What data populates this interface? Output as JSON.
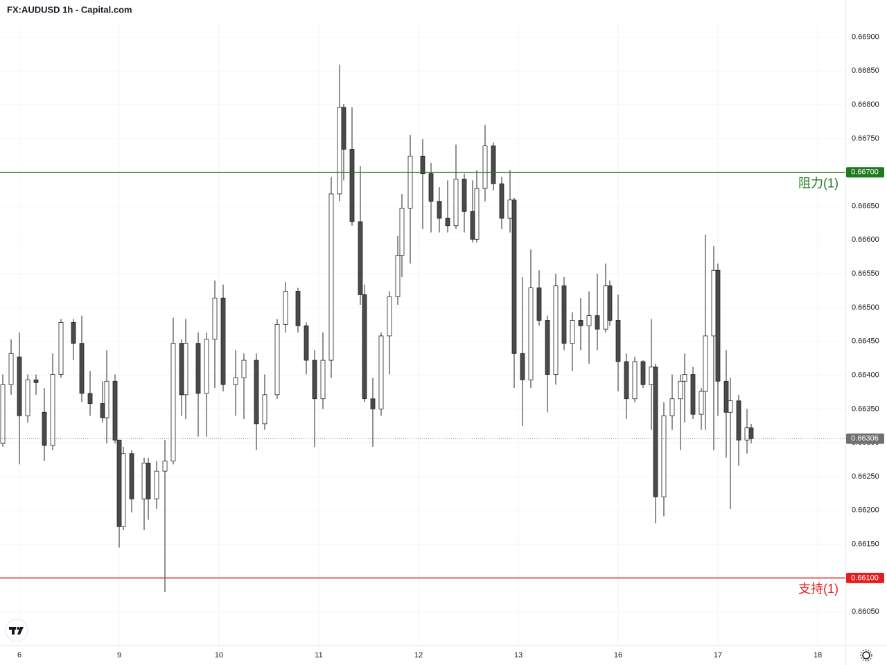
{
  "chart_data": {
    "type": "candlestick",
    "title": "FX:AUDUSD 1h - Capital.com",
    "up_color": "#ffffff",
    "down_color": "#4a4a4a",
    "wick_color": "#222222",
    "grid": true,
    "xlim": [
      -4.67,
      198.67
    ],
    "ylim": [
      0.66,
      0.66922
    ],
    "xticks": [
      {
        "value": 0,
        "label": "6"
      },
      {
        "value": 24,
        "label": "9"
      },
      {
        "value": 48,
        "label": "10"
      },
      {
        "value": 72,
        "label": "11"
      },
      {
        "value": 96,
        "label": "12"
      },
      {
        "value": 120,
        "label": "13"
      },
      {
        "value": 144,
        "label": "16"
      },
      {
        "value": 168,
        "label": "17"
      },
      {
        "value": 192,
        "label": "18"
      }
    ],
    "yticks": [
      {
        "value": 0.6605,
        "label": "0.66050"
      },
      {
        "value": 0.661,
        "label": "0.66100"
      },
      {
        "value": 0.6615,
        "label": "0.66150"
      },
      {
        "value": 0.662,
        "label": "0.66200"
      },
      {
        "value": 0.6625,
        "label": "0.66250"
      },
      {
        "value": 0.663,
        "label": "0.66300"
      },
      {
        "value": 0.6635,
        "label": "0.66350"
      },
      {
        "value": 0.664,
        "label": "0.66400"
      },
      {
        "value": 0.6645,
        "label": "0.66450"
      },
      {
        "value": 0.665,
        "label": "0.66500"
      },
      {
        "value": 0.6655,
        "label": "0.66550"
      },
      {
        "value": 0.666,
        "label": "0.66600"
      },
      {
        "value": 0.6665,
        "label": "0.66650"
      },
      {
        "value": 0.667,
        "label": "0.66700"
      },
      {
        "value": 0.6675,
        "label": "0.66750"
      },
      {
        "value": 0.668,
        "label": "0.66800"
      },
      {
        "value": 0.6685,
        "label": "0.66850"
      },
      {
        "value": 0.669,
        "label": "0.66900"
      }
    ],
    "x": [
      -4,
      -2,
      0,
      2,
      4,
      6,
      8,
      10,
      13,
      15,
      17,
      20,
      21,
      23,
      24,
      25,
      27,
      30,
      31,
      33,
      35,
      37,
      39,
      40,
      43,
      45,
      47,
      49,
      52,
      54,
      57,
      59,
      62,
      64,
      67,
      69,
      71,
      73,
      75,
      77,
      78,
      80,
      82,
      83,
      85,
      87,
      89,
      91,
      92,
      94,
      97,
      99,
      101,
      103,
      105,
      107,
      109,
      110,
      112,
      114,
      116,
      118,
      119,
      121,
      123,
      125,
      127,
      129,
      131,
      133,
      135,
      137,
      139,
      141,
      142,
      144,
      146,
      148,
      150,
      152,
      153,
      155,
      157,
      159,
      160,
      162,
      164,
      165,
      167,
      168,
      170,
      171,
      173,
      175,
      176
    ],
    "open": [
      0.66299,
      0.66386,
      0.66427,
      0.6634,
      0.66393,
      0.66345,
      0.66296,
      0.66401,
      0.66478,
      0.66447,
      0.66373,
      0.66358,
      0.66337,
      0.66391,
      0.66304,
      0.66176,
      0.66284,
      0.66217,
      0.6627,
      0.66217,
      0.66258,
      0.66273,
      0.66447,
      0.66371,
      0.66447,
      0.66373,
      0.66453,
      0.66514,
      0.66386,
      0.66396,
      0.66422,
      0.66328,
      0.66371,
      0.66475,
      0.66524,
      0.66473,
      0.66422,
      0.66365,
      0.66422,
      0.66668,
      0.66796,
      0.66734,
      0.66627,
      0.66519,
      0.66365,
      0.6635,
      0.66458,
      0.66516,
      0.66577,
      0.66647,
      0.66724,
      0.66698,
      0.66657,
      0.66632,
      0.66621,
      0.6669,
      0.66642,
      0.66601,
      0.66676,
      0.66739,
      0.66683,
      0.66632,
      0.66659,
      0.66432,
      0.66393,
      0.66529,
      0.66481,
      0.66401,
      0.66532,
      0.66447,
      0.66481,
      0.66473,
      0.66488,
      0.66468,
      0.66532,
      0.66481,
      0.6642,
      0.66365,
      0.6642,
      0.66386,
      0.66412,
      0.6622,
      0.6634,
      0.66365,
      0.66391,
      0.66401,
      0.66342,
      0.66376,
      0.66458,
      0.66555,
      0.66391,
      0.66345,
      0.66362,
      0.66304,
      0.66322
    ],
    "high": [
      0.66401,
      0.66453,
      0.66463,
      0.66401,
      0.66401,
      0.66381,
      0.66432,
      0.66483,
      0.66483,
      0.66488,
      0.66406,
      0.66391,
      0.66437,
      0.66401,
      0.66304,
      0.66294,
      0.66289,
      0.66278,
      0.66278,
      0.66273,
      0.66304,
      0.66485,
      0.66453,
      0.66483,
      0.66463,
      0.66463,
      0.6654,
      0.66534,
      0.66437,
      0.66432,
      0.66432,
      0.66401,
      0.66483,
      0.66538,
      0.66529,
      0.66478,
      0.66437,
      0.66463,
      0.66693,
      0.66859,
      0.66801,
      0.66796,
      0.66709,
      0.66534,
      0.66396,
      0.66463,
      0.66524,
      0.66606,
      0.66668,
      0.66755,
      0.66749,
      0.66714,
      0.66678,
      0.66688,
      0.66741,
      0.66698,
      0.66688,
      0.66703,
      0.6677,
      0.66744,
      0.66693,
      0.66703,
      0.66662,
      0.66545,
      0.66586,
      0.66555,
      0.66488,
      0.6655,
      0.66545,
      0.66493,
      0.66514,
      0.66524,
      0.6655,
      0.66565,
      0.6654,
      0.66519,
      0.66432,
      0.66427,
      0.66422,
      0.66483,
      0.66417,
      0.6636,
      0.66401,
      0.66401,
      0.66432,
      0.66412,
      0.66381,
      0.66608,
      0.66591,
      0.66565,
      0.66437,
      0.66396,
      0.66371,
      0.6635,
      0.66328
    ],
    "low": [
      0.66294,
      0.66371,
      0.66268,
      0.6633,
      0.66371,
      0.66273,
      0.66289,
      0.66396,
      0.66422,
      0.6636,
      0.6634,
      0.6633,
      0.66299,
      0.66299,
      0.66145,
      0.66171,
      0.66197,
      0.66171,
      0.66186,
      0.66202,
      0.66079,
      0.66268,
      0.6634,
      0.66335,
      0.66309,
      0.66309,
      0.66381,
      0.66376,
      0.6634,
      0.66335,
      0.66289,
      0.66319,
      0.66365,
      0.66463,
      0.66463,
      0.66401,
      0.66294,
      0.6635,
      0.66396,
      0.66657,
      0.66688,
      0.66621,
      0.66504,
      0.6636,
      0.66294,
      0.6634,
      0.66401,
      0.66504,
      0.66545,
      0.66565,
      0.66616,
      0.66611,
      0.66611,
      0.66611,
      0.66616,
      0.66611,
      0.66596,
      0.66596,
      0.66657,
      0.66673,
      0.66616,
      0.66611,
      0.66381,
      0.66325,
      0.66381,
      0.66473,
      0.66345,
      0.66386,
      0.66437,
      0.66406,
      0.66437,
      0.66417,
      0.66437,
      0.66463,
      0.66473,
      0.66376,
      0.66335,
      0.6636,
      0.66381,
      0.66319,
      0.66181,
      0.66191,
      0.66319,
      0.66289,
      0.6633,
      0.66335,
      0.66319,
      0.66319,
      0.66289,
      0.6634,
      0.66278,
      0.66202,
      0.66266,
      0.66284,
      0.66299
    ],
    "close": [
      0.66386,
      0.66432,
      0.6634,
      0.66393,
      0.66389,
      0.66296,
      0.66401,
      0.66478,
      0.66447,
      0.66373,
      0.66358,
      0.66337,
      0.66391,
      0.66304,
      0.66176,
      0.66284,
      0.66217,
      0.6627,
      0.66217,
      0.66258,
      0.66273,
      0.66447,
      0.66371,
      0.66447,
      0.66373,
      0.66453,
      0.66514,
      0.66386,
      0.66396,
      0.66422,
      0.66328,
      0.66371,
      0.66475,
      0.66524,
      0.66473,
      0.66422,
      0.66365,
      0.66422,
      0.66668,
      0.66796,
      0.66734,
      0.66627,
      0.66519,
      0.66365,
      0.6635,
      0.66458,
      0.66516,
      0.66577,
      0.66647,
      0.66724,
      0.66698,
      0.66657,
      0.66632,
      0.66621,
      0.6669,
      0.66642,
      0.66601,
      0.66676,
      0.66739,
      0.66683,
      0.66632,
      0.66659,
      0.66432,
      0.66393,
      0.66529,
      0.66481,
      0.66401,
      0.66532,
      0.66447,
      0.66481,
      0.66473,
      0.66488,
      0.66468,
      0.66532,
      0.66481,
      0.6642,
      0.66365,
      0.6642,
      0.66386,
      0.66412,
      0.6622,
      0.6634,
      0.66365,
      0.66391,
      0.66401,
      0.66342,
      0.66376,
      0.66458,
      0.66555,
      0.66391,
      0.66345,
      0.66362,
      0.66304,
      0.66322,
      0.66306
    ],
    "levels": [
      {
        "name": "阻力(1)",
        "value": 0.667,
        "label": "0.66700",
        "color": "#1f7a1f"
      },
      {
        "name": "支持(1)",
        "value": 0.661,
        "label": "0.66100",
        "color": "#e02020"
      }
    ],
    "last_price": {
      "value": 0.66306,
      "label": "0.66306",
      "color": "#707070"
    }
  }
}
